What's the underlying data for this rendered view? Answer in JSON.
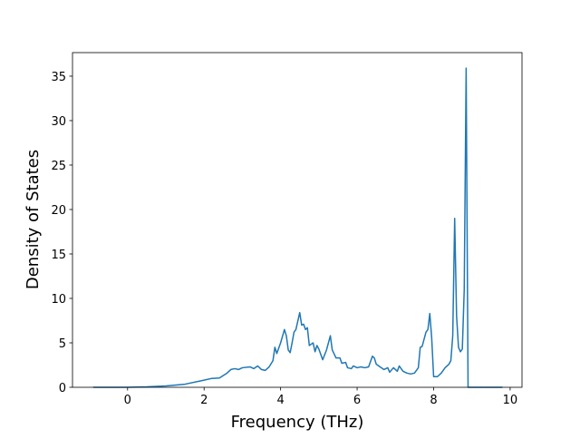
{
  "chart_data": {
    "type": "line",
    "xlabel": "Frequency (THz)",
    "ylabel": "Density of States",
    "x": [
      -0.9,
      -0.5,
      0,
      0.5,
      1.0,
      1.5,
      2.0,
      2.2,
      2.4,
      2.6,
      2.7,
      2.8,
      2.9,
      3.0,
      3.2,
      3.3,
      3.4,
      3.5,
      3.6,
      3.7,
      3.8,
      3.85,
      3.9,
      4.0,
      4.1,
      4.15,
      4.2,
      4.25,
      4.3,
      4.35,
      4.4,
      4.5,
      4.55,
      4.6,
      4.65,
      4.7,
      4.75,
      4.85,
      4.9,
      4.95,
      5.0,
      5.1,
      5.2,
      5.3,
      5.35,
      5.45,
      5.55,
      5.6,
      5.7,
      5.75,
      5.85,
      5.9,
      6.0,
      6.1,
      6.2,
      6.3,
      6.4,
      6.45,
      6.5,
      6.6,
      6.7,
      6.8,
      6.85,
      6.95,
      7.05,
      7.1,
      7.2,
      7.3,
      7.4,
      7.5,
      7.6,
      7.65,
      7.7,
      7.8,
      7.85,
      7.9,
      7.95,
      8.0,
      8.1,
      8.2,
      8.3,
      8.4,
      8.45,
      8.5,
      8.55,
      8.6,
      8.65,
      8.7,
      8.75,
      8.8,
      8.85,
      8.9,
      9.0,
      9.8
    ],
    "series": [
      {
        "color": "#1f77b4",
        "values": [
          0,
          0,
          0,
          0.05,
          0.15,
          0.35,
          0.8,
          1.0,
          1.05,
          1.6,
          2.0,
          2.1,
          2.0,
          2.2,
          2.3,
          2.1,
          2.4,
          2.0,
          1.9,
          2.3,
          3.0,
          4.5,
          3.8,
          5.0,
          6.5,
          5.8,
          4.2,
          3.9,
          5.0,
          6.2,
          6.5,
          8.4,
          7.0,
          7.1,
          6.5,
          6.7,
          4.7,
          5.0,
          4.0,
          4.7,
          4.3,
          3.1,
          4.2,
          5.8,
          4.2,
          3.3,
          3.3,
          2.7,
          2.8,
          2.2,
          2.1,
          2.4,
          2.2,
          2.3,
          2.2,
          2.3,
          3.5,
          3.3,
          2.6,
          2.3,
          2.0,
          2.2,
          1.7,
          2.2,
          1.8,
          2.4,
          1.8,
          1.6,
          1.5,
          1.6,
          2.2,
          4.5,
          4.6,
          6.2,
          6.5,
          8.3,
          5.5,
          1.2,
          1.2,
          1.6,
          2.2,
          2.6,
          3.0,
          5.8,
          19.0,
          8.0,
          4.5,
          4.0,
          4.3,
          11.0,
          35.9,
          0,
          0,
          0
        ]
      }
    ],
    "xlim": [
      -1.44,
      10.31
    ],
    "xticks": [
      0,
      2,
      4,
      6,
      8,
      10
    ],
    "ylim": [
      0,
      37.65
    ],
    "yticks": [
      0,
      5,
      10,
      15,
      20,
      25,
      30,
      35
    ]
  }
}
